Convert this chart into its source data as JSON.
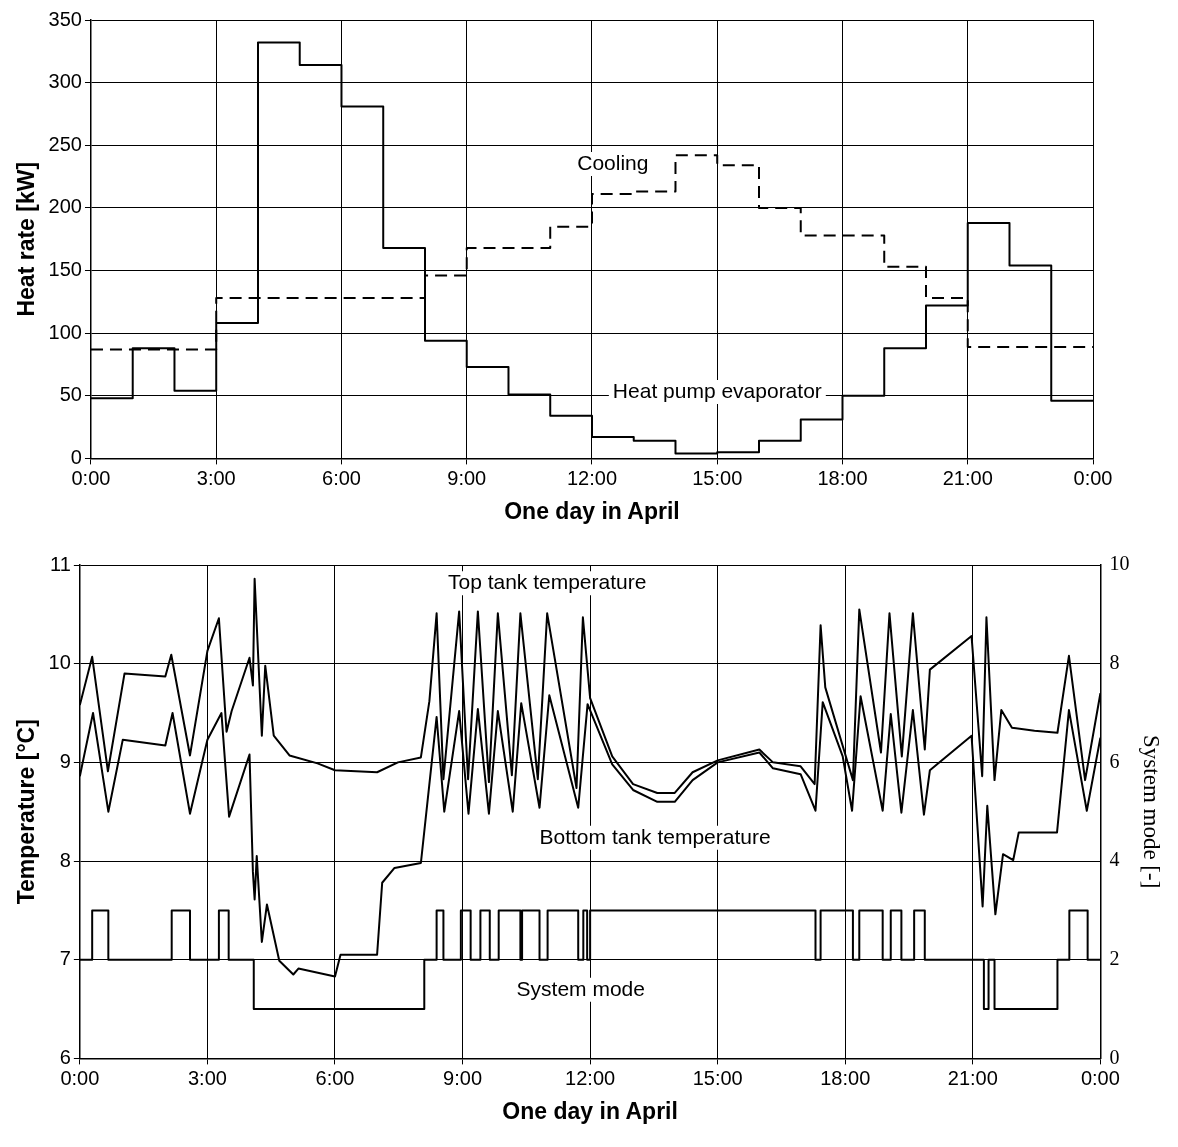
{
  "chart_data": [
    {
      "type": "step",
      "xlabel": "One day in April",
      "ylabel": "Heat rate [kW]",
      "xlim": [
        0,
        24
      ],
      "xticks": [
        {
          "value": 0,
          "label": "0:00"
        },
        {
          "value": 3,
          "label": "3:00"
        },
        {
          "value": 6,
          "label": "6:00"
        },
        {
          "value": 9,
          "label": "9:00"
        },
        {
          "value": 12,
          "label": "12:00"
        },
        {
          "value": 15,
          "label": "15:00"
        },
        {
          "value": 18,
          "label": "18:00"
        },
        {
          "value": 21,
          "label": "21:00"
        },
        {
          "value": 24,
          "label": "0:00"
        }
      ],
      "ylim": [
        0,
        350
      ],
      "yticks": [
        0,
        50,
        100,
        150,
        200,
        250,
        300,
        350
      ],
      "grid": true,
      "legend": false,
      "x": [
        0,
        1,
        2,
        3,
        4,
        5,
        6,
        7,
        8,
        9,
        10,
        11,
        12,
        13,
        14,
        15,
        16,
        17,
        18,
        19,
        20,
        21,
        22,
        23,
        24
      ],
      "series": [
        {
          "name": "Heat pump evaporator",
          "color": "#000000",
          "line_style": "solid",
          "values": [
            48,
            88,
            54,
            108,
            332,
            314,
            281,
            168,
            94,
            73,
            51,
            34,
            17,
            14,
            4,
            5,
            14,
            31,
            50,
            88,
            122,
            188,
            154,
            46,
            46
          ]
        },
        {
          "name": "Cooling",
          "color": "#000000",
          "line_style": "dashed",
          "values": [
            87,
            87,
            87,
            128,
            128,
            128,
            128,
            128,
            146,
            168,
            168,
            185,
            211,
            213,
            242,
            234,
            200,
            178,
            178,
            153,
            128,
            89,
            89,
            89,
            89
          ]
        }
      ],
      "marker": "none"
    },
    {
      "type": "line",
      "xlabel": "One day in April",
      "ylabel": "Temperature [°C]",
      "y2label": "System mode [-]",
      "xlim": [
        0,
        24
      ],
      "xticks": [
        {
          "value": 0,
          "label": "0:00"
        },
        {
          "value": 3,
          "label": "3:00"
        },
        {
          "value": 6,
          "label": "6:00"
        },
        {
          "value": 9,
          "label": "9:00"
        },
        {
          "value": 12,
          "label": "12:00"
        },
        {
          "value": 15,
          "label": "15:00"
        },
        {
          "value": 18,
          "label": "18:00"
        },
        {
          "value": 21,
          "label": "21:00"
        },
        {
          "value": 24,
          "label": "0:00"
        }
      ],
      "ylim": [
        6,
        11
      ],
      "yticks": [
        6,
        7,
        8,
        9,
        10,
        11
      ],
      "y2lim": [
        0,
        10
      ],
      "y2ticks": [
        0,
        2,
        4,
        6,
        8,
        10
      ],
      "grid": true,
      "legend": false,
      "series": [
        {
          "name": "Top tank temperature",
          "color": "#000000",
          "x": [
            0,
            0.29,
            0.66,
            1.05,
            2.01,
            2.15,
            2.59,
            3.0,
            3.27,
            3.45,
            3.57,
            3.99,
            4.07,
            4.11,
            4.28,
            4.36,
            4.56,
            4.93,
            5.59,
            6.0,
            6.99,
            7.48,
            8.02,
            8.22,
            8.39,
            8.55,
            8.92,
            9.13,
            9.36,
            9.62,
            9.83,
            10.16,
            10.36,
            10.77,
            10.99,
            11.68,
            11.83,
            12.0,
            12.52,
            13.01,
            13.58,
            13.99,
            14.41,
            15.0,
            15.98,
            16.3,
            16.95,
            17.28,
            17.42,
            17.53,
            18.18,
            18.33,
            18.84,
            19.04,
            19.33,
            19.59,
            19.87,
            19.99,
            20.97,
            21.22,
            21.32,
            21.51,
            21.67,
            21.92,
            22.45,
            22.99,
            23.26,
            23.64,
            24.0
          ],
          "values": [
            9.58,
            10.07,
            8.91,
            9.9,
            9.87,
            10.09,
            9.07,
            10.13,
            10.46,
            9.31,
            9.52,
            10.06,
            9.78,
            10.86,
            9.27,
            9.98,
            9.27,
            9.07,
            8.99,
            8.92,
            8.9,
            9.0,
            9.05,
            9.62,
            10.51,
            8.83,
            10.53,
            8.83,
            10.53,
            8.8,
            10.51,
            8.87,
            10.51,
            8.83,
            10.51,
            8.74,
            10.47,
            9.65,
            9.06,
            8.78,
            8.69,
            8.69,
            8.9,
            9.02,
            9.13,
            9.0,
            8.96,
            8.78,
            10.39,
            9.76,
            8.82,
            10.55,
            9.1,
            10.51,
            9.06,
            10.51,
            9.13,
            9.94,
            10.28,
            8.86,
            10.47,
            8.82,
            9.53,
            9.35,
            9.32,
            9.3,
            10.08,
            8.82,
            9.7
          ]
        },
        {
          "name": "Bottom tank temperature",
          "color": "#000000",
          "x": [
            0,
            0.31,
            0.67,
            1.01,
            2.01,
            2.18,
            2.59,
            3.0,
            3.33,
            3.51,
            3.99,
            4.07,
            4.11,
            4.16,
            4.28,
            4.4,
            4.69,
            5.02,
            5.14,
            6.0,
            6.13,
            6.99,
            7.11,
            7.4,
            8.02,
            8.39,
            8.57,
            8.92,
            9.14,
            9.36,
            9.62,
            9.83,
            10.18,
            10.38,
            10.81,
            11.04,
            11.72,
            11.94,
            12.52,
            13.01,
            13.58,
            13.99,
            14.41,
            15.0,
            15.98,
            16.3,
            16.95,
            17.3,
            17.47,
            17.94,
            18.16,
            18.36,
            18.88,
            19.07,
            19.32,
            19.59,
            19.85,
            19.99,
            20.97,
            21.23,
            21.34,
            21.53,
            21.71,
            21.95,
            22.08,
            22.98,
            23.26,
            23.68,
            24.0
          ],
          "values": [
            8.86,
            9.5,
            8.5,
            9.23,
            9.17,
            9.5,
            8.48,
            9.23,
            9.5,
            8.45,
            9.08,
            7.89,
            7.61,
            8.05,
            7.18,
            7.56,
            6.99,
            6.85,
            6.91,
            6.83,
            7.05,
            7.05,
            7.78,
            7.93,
            7.98,
            9.46,
            8.5,
            9.52,
            8.48,
            9.54,
            8.48,
            9.52,
            8.5,
            9.6,
            8.54,
            9.68,
            8.54,
            9.59,
            8.98,
            8.72,
            8.6,
            8.6,
            8.82,
            9.0,
            9.1,
            8.94,
            8.88,
            8.51,
            9.61,
            9.06,
            8.51,
            9.67,
            8.51,
            9.49,
            8.49,
            9.53,
            8.47,
            8.92,
            9.27,
            7.54,
            8.56,
            7.46,
            8.07,
            8.01,
            8.29,
            8.29,
            9.53,
            8.51,
            9.25
          ]
        },
        {
          "name": "System mode",
          "type": "step",
          "axis": "y2",
          "color": "#000000",
          "x": [
            0,
            0.29,
            0.67,
            2.16,
            2.59,
            3.27,
            3.5,
            4.09,
            8.1,
            8.39,
            8.55,
            8.96,
            9.19,
            9.42,
            9.64,
            9.85,
            10.36,
            10.4,
            10.81,
            11.0,
            11.72,
            11.84,
            11.93,
            12.0,
            17.3,
            17.42,
            18.18,
            18.33,
            18.88,
            19.07,
            19.32,
            19.62,
            19.87,
            21.26,
            21.37,
            21.51,
            22.99,
            23.27,
            23.7,
            24
          ],
          "values": [
            2,
            3,
            2,
            3,
            2,
            3,
            2,
            1,
            2,
            3,
            2,
            3,
            2,
            3,
            2,
            3,
            2,
            3,
            2,
            3,
            2,
            3,
            2,
            3,
            2,
            3,
            2,
            3,
            2,
            3,
            2,
            3,
            2,
            1,
            2,
            1,
            2,
            3,
            2,
            2
          ]
        }
      ]
    }
  ]
}
